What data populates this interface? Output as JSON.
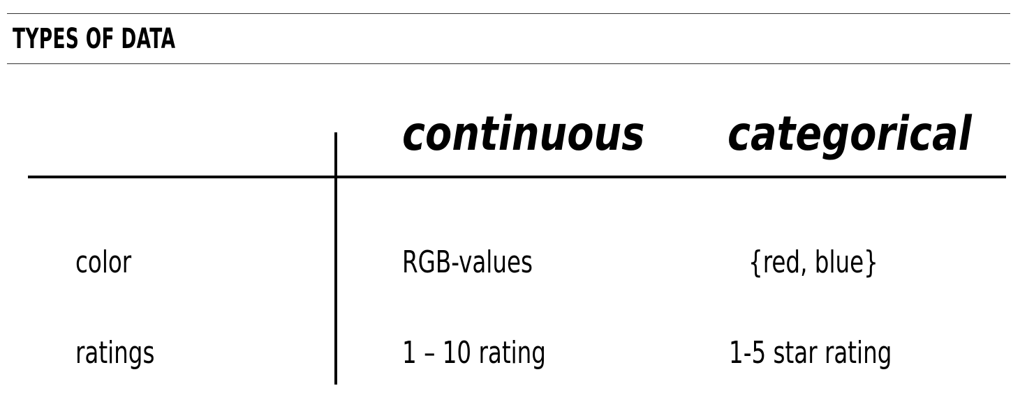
{
  "section": {
    "title": "TYPES OF DATA"
  },
  "table": {
    "columns": [
      "continuous",
      "categorical"
    ],
    "rows": [
      {
        "label": "color",
        "continuous": "RGB-values",
        "categorical": "{red, blue}"
      },
      {
        "label": "ratings",
        "continuous": "1 – 10 rating",
        "categorical": "1-5 star rating"
      }
    ]
  }
}
